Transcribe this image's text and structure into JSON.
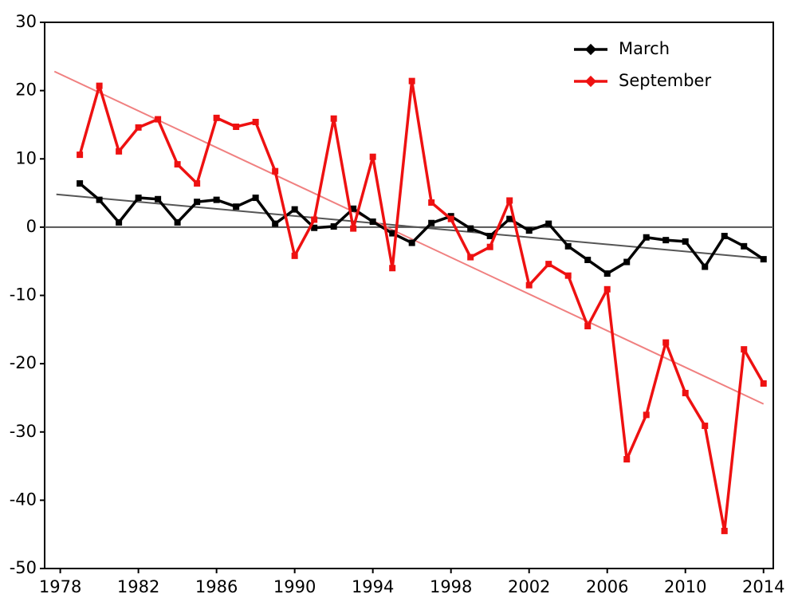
{
  "chart_data": {
    "type": "line",
    "x": [
      1979,
      1980,
      1981,
      1982,
      1983,
      1984,
      1985,
      1986,
      1987,
      1988,
      1989,
      1990,
      1991,
      1992,
      1993,
      1994,
      1995,
      1996,
      1997,
      1998,
      1999,
      2000,
      2001,
      2002,
      2003,
      2004,
      2005,
      2006,
      2007,
      2008,
      2009,
      2010,
      2011,
      2012,
      2013,
      2014
    ],
    "series": [
      {
        "name": "March",
        "color": "#000000",
        "values": [
          6.4,
          4.0,
          0.7,
          4.3,
          4.1,
          0.7,
          3.7,
          4.0,
          3.0,
          4.3,
          0.5,
          2.6,
          -0.1,
          0.1,
          2.7,
          0.8,
          -0.9,
          -2.3,
          0.6,
          1.6,
          -0.2,
          -1.3,
          1.2,
          -0.5,
          0.5,
          -2.8,
          -4.8,
          -6.8,
          -5.1,
          -1.5,
          -1.9,
          -2.1,
          -5.8,
          -1.3,
          -2.8,
          -4.7
        ],
        "trend": {
          "x": [
            1977.8,
            2014
          ],
          "values": [
            4.8,
            -4.6
          ],
          "color": "#555555"
        }
      },
      {
        "name": "September",
        "color": "#ee1111",
        "values": [
          10.6,
          20.7,
          11.1,
          14.6,
          15.8,
          9.2,
          6.4,
          16.0,
          14.7,
          15.4,
          8.2,
          -4.2,
          1.1,
          15.9,
          -0.2,
          10.3,
          -6.0,
          21.4,
          3.6,
          1.2,
          -4.4,
          -2.9,
          3.9,
          -8.5,
          -5.4,
          -7.1,
          -14.5,
          -9.1,
          -34.0,
          -27.5,
          -16.9,
          -24.3,
          -29.1,
          -44.5,
          -17.9,
          -22.9
        ],
        "trend": {
          "x": [
            1977.7,
            2014
          ],
          "values": [
            22.8,
            -25.9
          ],
          "color": "#f08080"
        }
      }
    ],
    "xlim": [
      1977.2,
      2014.5
    ],
    "xticks": [
      1978,
      1982,
      1986,
      1990,
      1994,
      1998,
      2002,
      2006,
      2010,
      2014
    ],
    "ylim": [
      -50,
      30
    ],
    "yticks": [
      -50,
      -40,
      -30,
      -20,
      -10,
      0,
      10,
      20,
      30
    ],
    "zero_line": true,
    "legend": "upper right"
  }
}
